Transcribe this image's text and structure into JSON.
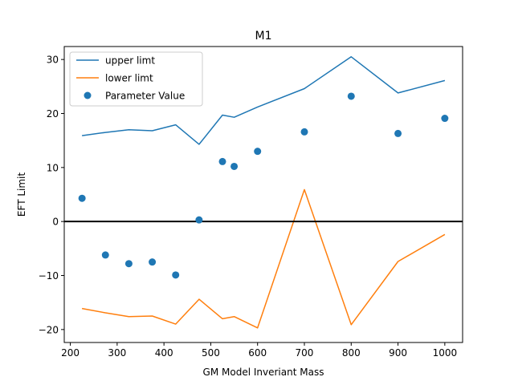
{
  "chart_data": {
    "type": "line",
    "title": "M1",
    "xlabel": "GM Model Inveriant Mass",
    "ylabel": "EFT Limit",
    "xlim": [
      187,
      1038
    ],
    "ylim": [
      -22.4,
      32.4
    ],
    "xticks": [
      200,
      300,
      400,
      500,
      600,
      700,
      800,
      900,
      1000
    ],
    "yticks": [
      -20,
      -10,
      0,
      10,
      20,
      30
    ],
    "grid": false,
    "legend_position": "upper-left",
    "hline": 0,
    "series": [
      {
        "name": "upper limt",
        "kind": "line",
        "color": "#1f77b4",
        "x": [
          225,
          275,
          325,
          375,
          425,
          475,
          525,
          550,
          600,
          700,
          800,
          900,
          1000
        ],
        "y": [
          15.9,
          16.5,
          17.0,
          16.8,
          17.9,
          14.3,
          19.7,
          19.3,
          21.2,
          24.6,
          30.5,
          23.8,
          26.1
        ]
      },
      {
        "name": "lower limt",
        "kind": "line",
        "color": "#ff7f0e",
        "x": [
          225,
          275,
          325,
          375,
          425,
          475,
          525,
          550,
          600,
          700,
          800,
          900,
          1000
        ],
        "y": [
          -16.1,
          -16.9,
          -17.6,
          -17.5,
          -19.0,
          -14.4,
          -18.0,
          -17.6,
          -19.7,
          5.9,
          -19.1,
          -7.4,
          -2.4
        ]
      },
      {
        "name": "Parameter Value",
        "kind": "scatter",
        "color": "#1f77b4",
        "x": [
          225,
          275,
          325,
          375,
          425,
          475,
          525,
          550,
          600,
          700,
          800,
          900,
          1000
        ],
        "y": [
          4.3,
          -6.2,
          -7.8,
          -7.5,
          -9.9,
          0.3,
          11.1,
          10.2,
          13.0,
          16.6,
          23.2,
          16.3,
          19.1
        ]
      }
    ]
  }
}
